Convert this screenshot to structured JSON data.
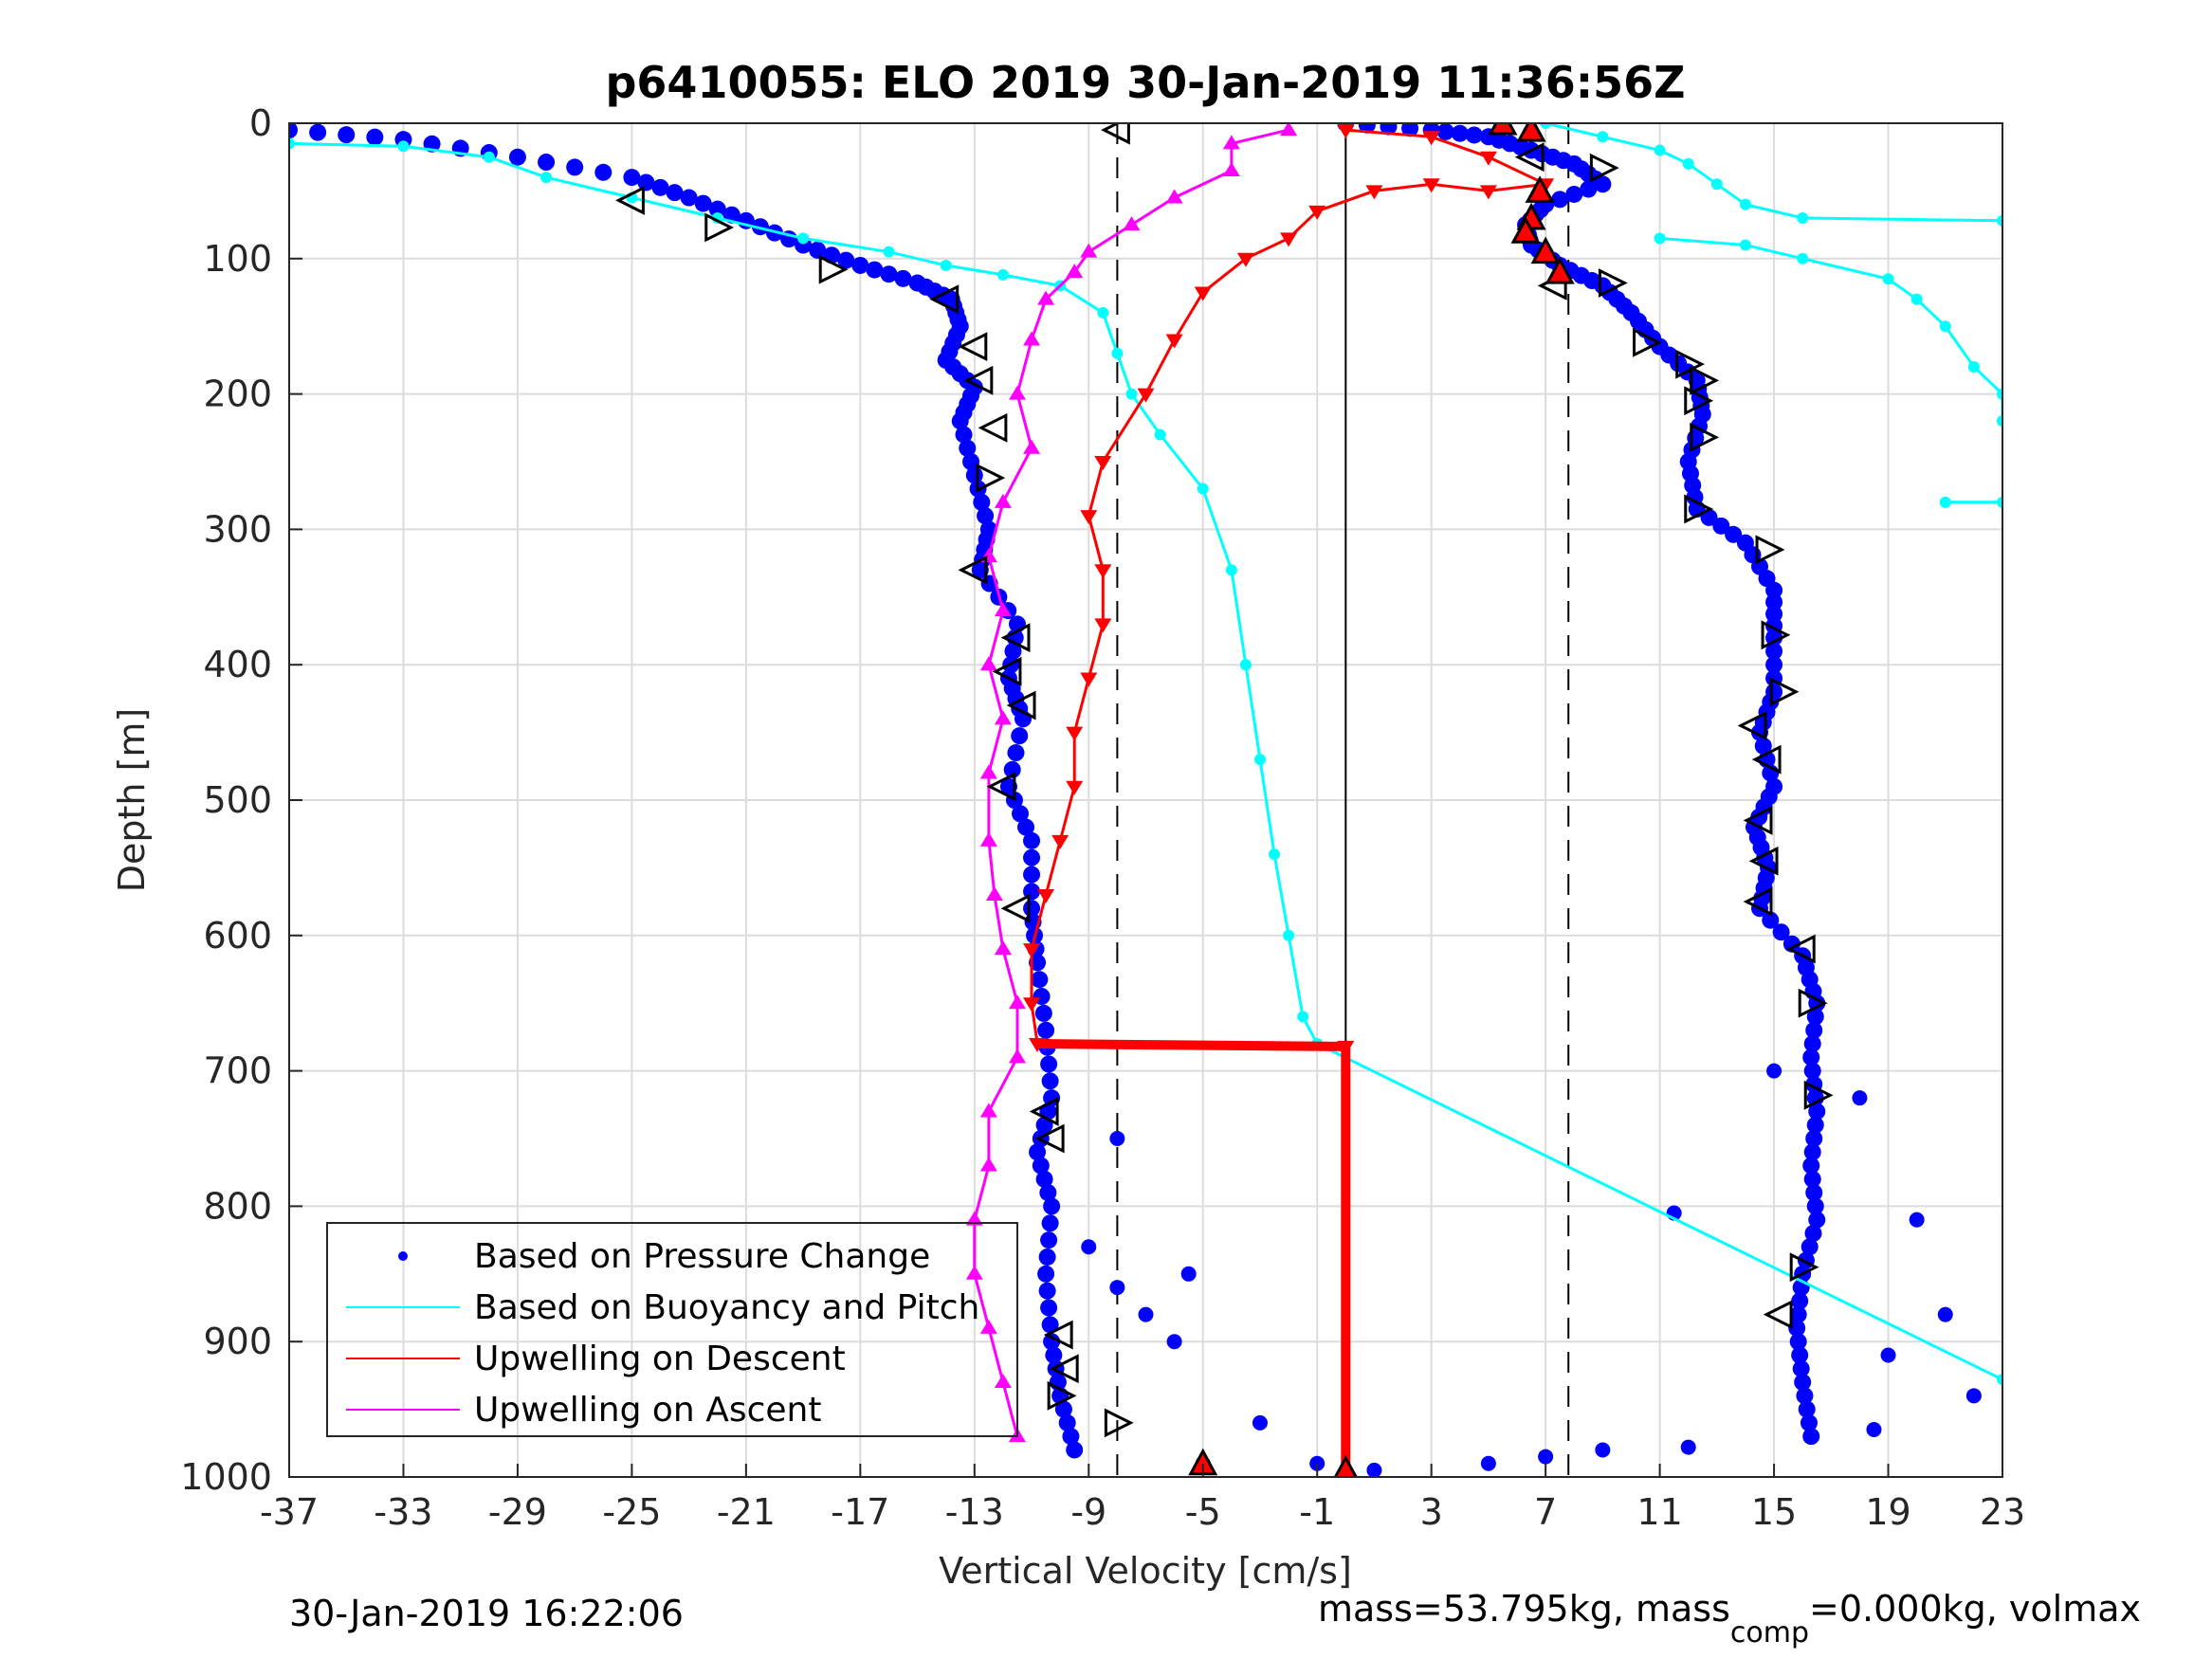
{
  "chart_data": {
    "type": "scatter",
    "title": "p6410055: ELO 2019 30-Jan-2019 11:36:56Z",
    "xlabel": "Vertical Velocity [cm/s]",
    "ylabel": "Depth [m]",
    "xlim": [
      -37,
      23
    ],
    "ylim": [
      1000,
      0
    ],
    "y_reversed": true,
    "grid": true,
    "xticks": [
      -37,
      -33,
      -29,
      -25,
      -21,
      -17,
      -13,
      -9,
      -5,
      -1,
      3,
      7,
      11,
      15,
      19,
      23
    ],
    "yticks": [
      0,
      100,
      200,
      300,
      400,
      500,
      600,
      700,
      800,
      900,
      1000
    ],
    "legend_position": "bottom-left",
    "legend": [
      {
        "label": "Based on Pressure Change",
        "color": "#0000ff",
        "style": "dot"
      },
      {
        "label": "Based on Buoyancy and Pitch",
        "color": "#00ffff",
        "style": "line"
      },
      {
        "label": "Upwelling on Descent",
        "color": "#ff0000",
        "style": "line"
      },
      {
        "label": "Upwelling on Ascent",
        "color": "#ff00ff",
        "style": "line"
      }
    ],
    "reference_lines": [
      {
        "x": -8.0,
        "style": "dashed",
        "color": "#000000"
      },
      {
        "x": 0.0,
        "style": "solid",
        "color": "#000000"
      },
      {
        "x": 7.8,
        "style": "dashed",
        "color": "#000000"
      }
    ],
    "series": [
      {
        "name": "Based on Pressure Change",
        "color": "#0000ff",
        "segments": [
          [
            [
              -37,
              5
            ],
            [
              -33,
              12
            ],
            [
              -29,
              25
            ],
            [
              -25,
              40
            ],
            [
              -23,
              55
            ],
            [
              -21,
              72
            ],
            [
              -19,
              90
            ],
            [
              -17,
              105
            ],
            [
              -15,
              118
            ],
            [
              -13.8,
              130
            ],
            [
              -13.5,
              150
            ],
            [
              -14,
              175
            ],
            [
              -13,
              195
            ],
            [
              -13.5,
              220
            ],
            [
              -13,
              260
            ],
            [
              -12.5,
              300
            ],
            [
              -12.8,
              330
            ],
            [
              -11.5,
              370
            ],
            [
              -11.8,
              410
            ],
            [
              -11.3,
              440
            ],
            [
              -11.8,
              490
            ],
            [
              -11,
              530
            ],
            [
              -11,
              580
            ],
            [
              -10.8,
              620
            ],
            [
              -10.5,
              670
            ],
            [
              -10.3,
              720
            ],
            [
              -10.8,
              760
            ],
            [
              -10.3,
              800
            ],
            [
              -10.5,
              850
            ],
            [
              -10.3,
              900
            ],
            [
              -10,
              940
            ],
            [
              -9.5,
              980
            ]
          ],
          [
            [
              0,
              0
            ],
            [
              3,
              5
            ],
            [
              5,
              10
            ],
            [
              6.5,
              20
            ],
            [
              8,
              30
            ],
            [
              9,
              45
            ],
            [
              7,
              60
            ],
            [
              6.3,
              75
            ],
            [
              6.5,
              90
            ],
            [
              7.5,
              105
            ],
            [
              9,
              120
            ],
            [
              10,
              140
            ],
            [
              11,
              165
            ],
            [
              12.3,
              190
            ],
            [
              12.5,
              215
            ],
            [
              12,
              250
            ],
            [
              12.3,
              285
            ],
            [
              14,
              310
            ],
            [
              15,
              345
            ],
            [
              15,
              380
            ],
            [
              15,
              420
            ],
            [
              14.5,
              450
            ],
            [
              15,
              490
            ],
            [
              14.3,
              520
            ],
            [
              14.8,
              550
            ],
            [
              14.5,
              580
            ],
            [
              16,
              615
            ],
            [
              16.5,
              650
            ],
            [
              16.3,
              690
            ],
            [
              16.5,
              730
            ],
            [
              16.3,
              770
            ],
            [
              16.5,
              810
            ],
            [
              16,
              850
            ],
            [
              15.8,
              890
            ],
            [
              16,
              930
            ],
            [
              16.3,
              970
            ]
          ]
        ],
        "scatter_points": [
          [
            -9,
            830
          ],
          [
            -8,
            860
          ],
          [
            -7,
            880
          ],
          [
            -6,
            900
          ],
          [
            -5.5,
            850
          ],
          [
            -5,
            990
          ],
          [
            -3,
            960
          ],
          [
            -1,
            990
          ],
          [
            1,
            995
          ],
          [
            5,
            990
          ],
          [
            7,
            985
          ],
          [
            9,
            980
          ],
          [
            12,
            978
          ],
          [
            18.5,
            965
          ],
          [
            19,
            910
          ],
          [
            21,
            880
          ],
          [
            22,
            940
          ],
          [
            11.5,
            805
          ],
          [
            20,
            810
          ],
          [
            15,
            700
          ],
          [
            18,
            720
          ],
          [
            -8,
            750
          ]
        ]
      },
      {
        "name": "Based on Buoyancy and Pitch",
        "color": "#00ffff",
        "segments": [
          [
            [
              -37,
              15
            ],
            [
              -33,
              17
            ],
            [
              -30,
              25
            ],
            [
              -28,
              40
            ],
            [
              -25,
              55
            ],
            [
              -22,
              70
            ],
            [
              -19,
              85
            ],
            [
              -16,
              95
            ],
            [
              -14,
              105
            ],
            [
              -12,
              112
            ],
            [
              -10,
              120
            ],
            [
              -8.5,
              140
            ],
            [
              -8,
              170
            ],
            [
              -7.5,
              200
            ],
            [
              -6.5,
              230
            ],
            [
              -5,
              270
            ],
            [
              -4,
              330
            ],
            [
              -3.5,
              400
            ],
            [
              -3,
              470
            ],
            [
              -2.5,
              540
            ],
            [
              -2,
              600
            ],
            [
              -1.5,
              660
            ],
            [
              -1,
              680
            ],
            [
              23,
              928
            ]
          ],
          [
            [
              7,
              0
            ],
            [
              9,
              10
            ],
            [
              11,
              20
            ],
            [
              12,
              30
            ],
            [
              13,
              45
            ],
            [
              14,
              60
            ],
            [
              16,
              70
            ],
            [
              23,
              72
            ]
          ],
          [
            [
              11,
              85
            ],
            [
              14,
              90
            ],
            [
              16,
              100
            ],
            [
              19,
              115
            ],
            [
              20,
              130
            ],
            [
              21,
              150
            ],
            [
              22,
              180
            ],
            [
              23,
              200
            ],
            [
              23,
              220
            ]
          ],
          [
            [
              21,
              280
            ],
            [
              23,
              280
            ]
          ]
        ]
      },
      {
        "name": "Upwelling on Descent",
        "color": "#ff0000",
        "segments": [
          [
            [
              0,
              5
            ],
            [
              3,
              10
            ],
            [
              5,
              25
            ],
            [
              7,
              45
            ],
            [
              5,
              50
            ],
            [
              3,
              45
            ],
            [
              1,
              50
            ],
            [
              -1,
              65
            ],
            [
              -2,
              85
            ],
            [
              -3.5,
              100
            ],
            [
              -5,
              125
            ],
            [
              -6,
              160
            ],
            [
              -7,
              200
            ],
            [
              -8.5,
              250
            ],
            [
              -9,
              290
            ],
            [
              -8.5,
              330
            ],
            [
              -8.5,
              370
            ],
            [
              -9,
              410
            ],
            [
              -9.5,
              450
            ],
            [
              -9.5,
              490
            ],
            [
              -10,
              530
            ],
            [
              -10.5,
              570
            ],
            [
              -11,
              610
            ],
            [
              -11,
              650
            ],
            [
              -10.8,
              680
            ],
            [
              0,
              682
            ],
            [
              0,
              1000
            ]
          ]
        ]
      },
      {
        "name": "Upwelling on Ascent",
        "color": "#ff00ff",
        "segments": [
          [
            [
              -2,
              5
            ],
            [
              -4,
              15
            ],
            [
              -4,
              35
            ],
            [
              -6,
              55
            ],
            [
              -7.5,
              75
            ],
            [
              -9,
              95
            ],
            [
              -9.5,
              110
            ],
            [
              -10.5,
              130
            ],
            [
              -11,
              160
            ],
            [
              -11.5,
              200
            ],
            [
              -11,
              240
            ],
            [
              -12,
              280
            ],
            [
              -12.5,
              320
            ],
            [
              -12,
              360
            ],
            [
              -12.5,
              400
            ],
            [
              -12,
              440
            ],
            [
              -12.5,
              480
            ],
            [
              -12.5,
              530
            ],
            [
              -12.3,
              570
            ],
            [
              -12,
              610
            ],
            [
              -11.5,
              650
            ],
            [
              -11.5,
              690
            ],
            [
              -12.5,
              730
            ],
            [
              -12.5,
              770
            ],
            [
              -13,
              810
            ],
            [
              -13,
              850
            ],
            [
              -12.5,
              890
            ],
            [
              -12,
              930
            ],
            [
              -11.5,
              970
            ]
          ]
        ]
      }
    ],
    "markers": [
      {
        "type": "triangle-left",
        "points": [
          [
            -25,
            57
          ],
          [
            -14,
            130
          ],
          [
            -13,
            165
          ],
          [
            -12.8,
            190
          ],
          [
            -12.3,
            225
          ],
          [
            -13,
            330
          ],
          [
            -11.5,
            380
          ],
          [
            -11.8,
            405
          ],
          [
            -11.3,
            430
          ],
          [
            -12,
            490
          ],
          [
            -11.5,
            580
          ],
          [
            -10.5,
            730
          ],
          [
            -10.3,
            750
          ],
          [
            -10,
            895
          ],
          [
            -9.8,
            920
          ],
          [
            -8,
            5
          ],
          [
            7.3,
            120
          ],
          [
            14.3,
            445
          ],
          [
            14.8,
            470
          ],
          [
            14.5,
            515
          ],
          [
            14.7,
            545
          ],
          [
            14.5,
            575
          ],
          [
            16,
            610
          ],
          [
            15.2,
            880
          ],
          [
            6.5,
            25
          ]
        ]
      },
      {
        "type": "triangle-right",
        "points": [
          [
            -22,
            77
          ],
          [
            -18,
            108
          ],
          [
            -12.5,
            262
          ],
          [
            -10,
            940
          ],
          [
            -8,
            960
          ],
          [
            9,
            33
          ],
          [
            9.3,
            118
          ],
          [
            10.5,
            162
          ],
          [
            12,
            178
          ],
          [
            12.5,
            190
          ],
          [
            12.3,
            205
          ],
          [
            12.5,
            232
          ],
          [
            12.3,
            285
          ],
          [
            14.8,
            315
          ],
          [
            15,
            378
          ],
          [
            15.3,
            420
          ],
          [
            16.3,
            650
          ],
          [
            16.5,
            718
          ],
          [
            16,
            845
          ]
        ]
      },
      {
        "type": "triangle-red",
        "points": [
          [
            5.5,
            0
          ],
          [
            6.5,
            5
          ],
          [
            6.8,
            50
          ],
          [
            6.5,
            70
          ],
          [
            6.3,
            80
          ],
          [
            7,
            95
          ],
          [
            7.5,
            110
          ],
          [
            -5,
            990
          ],
          [
            0,
            995
          ]
        ]
      }
    ]
  },
  "footer": {
    "timestamp": "30-Jan-2019 16:22:06",
    "mass_text": "mass=53.795kg, mass",
    "mass_sub": "comp",
    "mass_tail": "=0.000kg, volmax"
  }
}
